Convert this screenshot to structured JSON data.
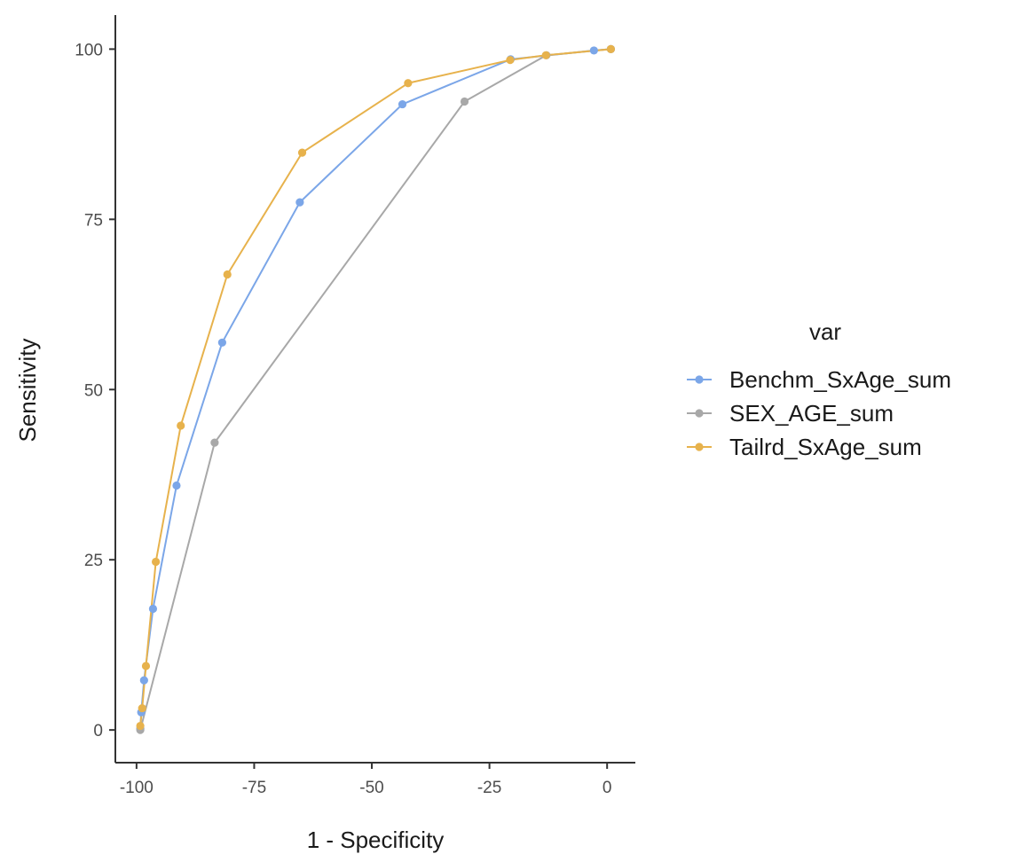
{
  "chart_data": {
    "type": "line",
    "title": "",
    "xlabel": "1 - Specificity",
    "ylabel": "Sensitivity",
    "xlim": [
      -104.5,
      6
    ],
    "ylim": [
      -4.8,
      105
    ],
    "x_ticks": [
      -100,
      -75,
      -50,
      -25,
      0
    ],
    "x_tick_labels": [
      "-100",
      "-75",
      "-50",
      "-25",
      "0"
    ],
    "y_ticks": [
      0,
      25,
      50,
      75,
      100
    ],
    "y_tick_labels": [
      "0",
      "25",
      "50",
      "75",
      "100"
    ],
    "grid": false,
    "legend": {
      "title": "var",
      "position": "right"
    },
    "series": [
      {
        "name": "Benchm_SxAge_sum",
        "color": "#7ba6e8",
        "points": [
          [
            -99.2,
            0.2
          ],
          [
            -99.0,
            2.6
          ],
          [
            -98.4,
            7.3
          ],
          [
            -96.5,
            17.8
          ],
          [
            -91.5,
            35.9
          ],
          [
            -81.8,
            56.9
          ],
          [
            -65.3,
            77.5
          ],
          [
            -43.5,
            91.9
          ],
          [
            -20.5,
            98.5
          ],
          [
            -2.8,
            99.8
          ],
          [
            0.8,
            100.0
          ]
        ]
      },
      {
        "name": "SEX_AGE_sum",
        "color": "#a8a8a8",
        "points": [
          [
            -99.2,
            0.0
          ],
          [
            -83.4,
            42.2
          ],
          [
            -30.3,
            92.3
          ],
          [
            -12.9,
            99.1
          ],
          [
            0.8,
            100.0
          ]
        ]
      },
      {
        "name": "Tailrd_SxAge_sum",
        "color": "#e7b24c",
        "points": [
          [
            -99.2,
            0.6
          ],
          [
            -98.8,
            3.2
          ],
          [
            -98.0,
            9.4
          ],
          [
            -95.9,
            24.7
          ],
          [
            -90.6,
            44.7
          ],
          [
            -80.7,
            66.9
          ],
          [
            -64.8,
            84.8
          ],
          [
            -42.3,
            95.0
          ],
          [
            -20.6,
            98.4
          ],
          [
            -13.0,
            99.1
          ],
          [
            0.8,
            100.0
          ]
        ]
      }
    ]
  }
}
